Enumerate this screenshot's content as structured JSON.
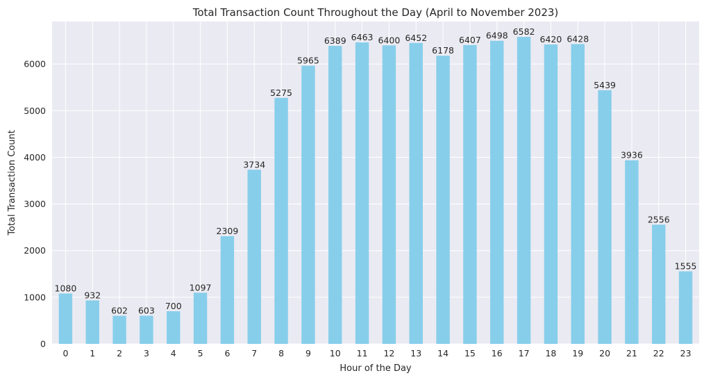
{
  "chart_data": {
    "type": "bar",
    "title": "Total Transaction Count Throughout the Day (April to November 2023)",
    "xlabel": "Hour of the Day",
    "ylabel": "Total Transaction Count",
    "categories": [
      "0",
      "1",
      "2",
      "3",
      "4",
      "5",
      "6",
      "7",
      "8",
      "9",
      "10",
      "11",
      "12",
      "13",
      "14",
      "15",
      "16",
      "17",
      "18",
      "19",
      "20",
      "21",
      "22",
      "23"
    ],
    "values": [
      1080,
      932,
      602,
      603,
      700,
      1097,
      2309,
      3734,
      5275,
      5965,
      6389,
      6463,
      6400,
      6452,
      6178,
      6407,
      6498,
      6582,
      6420,
      6428,
      5439,
      3936,
      2556,
      1555
    ],
    "ylim": [
      0,
      6911
    ],
    "yticks": [
      0,
      1000,
      2000,
      3000,
      4000,
      5000,
      6000
    ],
    "grid": true,
    "colors": {
      "bar": "#87CEEB",
      "background": "#EAEAF2",
      "grid": "#FFFFFF",
      "text": "#262626"
    }
  }
}
